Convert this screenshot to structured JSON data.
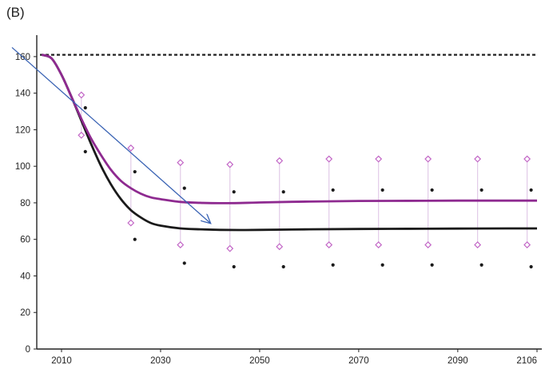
{
  "panel_label": "(B)",
  "colors": {
    "axis": "#222222",
    "reference_line": "#222222",
    "series_black": "#1a1a1a",
    "series_magenta": "#8e2a90",
    "marker_magenta": "#c266c6",
    "whisker": "#e2cbe8",
    "arrow": "#3a63b4"
  },
  "chart_data": {
    "type": "line",
    "title": "",
    "xlabel": "",
    "ylabel": "",
    "xlim": [
      2005,
      2106
    ],
    "ylim": [
      0,
      170
    ],
    "x_ticks": [
      "2010",
      "2030",
      "2050",
      "2070",
      "2090",
      "2106"
    ],
    "y_ticks": [
      "0",
      "20",
      "40",
      "60",
      "80",
      "100",
      "120",
      "140",
      "160"
    ],
    "grid": false,
    "reference_line": {
      "y": 161,
      "style": "dashed"
    },
    "series": [
      {
        "x": [
          2006,
          2008,
          2010,
          2012,
          2014,
          2016,
          2018,
          2020,
          2022,
          2024,
          2026,
          2028,
          2030,
          2034,
          2038,
          2042,
          2046,
          2050,
          2060,
          2070,
          2080,
          2090,
          2100,
          2106
        ],
        "values": [
          161,
          159,
          150,
          138,
          125,
          112,
          100,
          90,
          82,
          76,
          72,
          69,
          67.5,
          66,
          65.5,
          65.2,
          65.1,
          65.2,
          65.5,
          65.7,
          65.8,
          65.9,
          66,
          66
        ],
        "color_key": "series_black"
      },
      {
        "x": [
          2006,
          2008,
          2010,
          2012,
          2014,
          2016,
          2018,
          2020,
          2022,
          2024,
          2026,
          2028,
          2030,
          2034,
          2038,
          2042,
          2046,
          2050,
          2060,
          2070,
          2080,
          2090,
          2100,
          2106
        ],
        "values": [
          161,
          159,
          150,
          138,
          126,
          115,
          106,
          98,
          92,
          88,
          85,
          83,
          82,
          80.5,
          80,
          79.8,
          79.9,
          80.2,
          80.7,
          81,
          81.1,
          81.2,
          81.2,
          81.2
        ],
        "color_key": "series_magenta"
      }
    ],
    "interval_markers": [
      {
        "x": 2014,
        "magenta_upper": 139,
        "magenta_lower": 117,
        "black_upper": 132,
        "black_lower": 108
      },
      {
        "x": 2024,
        "magenta_upper": 110,
        "magenta_lower": 69,
        "black_upper": 97,
        "black_lower": 60
      },
      {
        "x": 2034,
        "magenta_upper": 102,
        "magenta_lower": 57,
        "black_upper": 88,
        "black_lower": 47
      },
      {
        "x": 2044,
        "magenta_upper": 101,
        "magenta_lower": 55,
        "black_upper": 86,
        "black_lower": 45
      },
      {
        "x": 2054,
        "magenta_upper": 103,
        "magenta_lower": 56,
        "black_upper": 86,
        "black_lower": 45
      },
      {
        "x": 2064,
        "magenta_upper": 104,
        "magenta_lower": 57,
        "black_upper": 87,
        "black_lower": 46
      },
      {
        "x": 2074,
        "magenta_upper": 104,
        "magenta_lower": 57,
        "black_upper": 87,
        "black_lower": 46
      },
      {
        "x": 2084,
        "magenta_upper": 104,
        "magenta_lower": 57,
        "black_upper": 87,
        "black_lower": 46
      },
      {
        "x": 2094,
        "magenta_upper": 104,
        "magenta_lower": 57,
        "black_upper": 87,
        "black_lower": 46
      },
      {
        "x": 2104,
        "magenta_upper": 104,
        "magenta_lower": 57,
        "black_upper": 87,
        "black_lower": 45
      }
    ],
    "annotation_arrow": {
      "from": [
        2000,
        165
      ],
      "to": [
        2040,
        69
      ]
    }
  }
}
